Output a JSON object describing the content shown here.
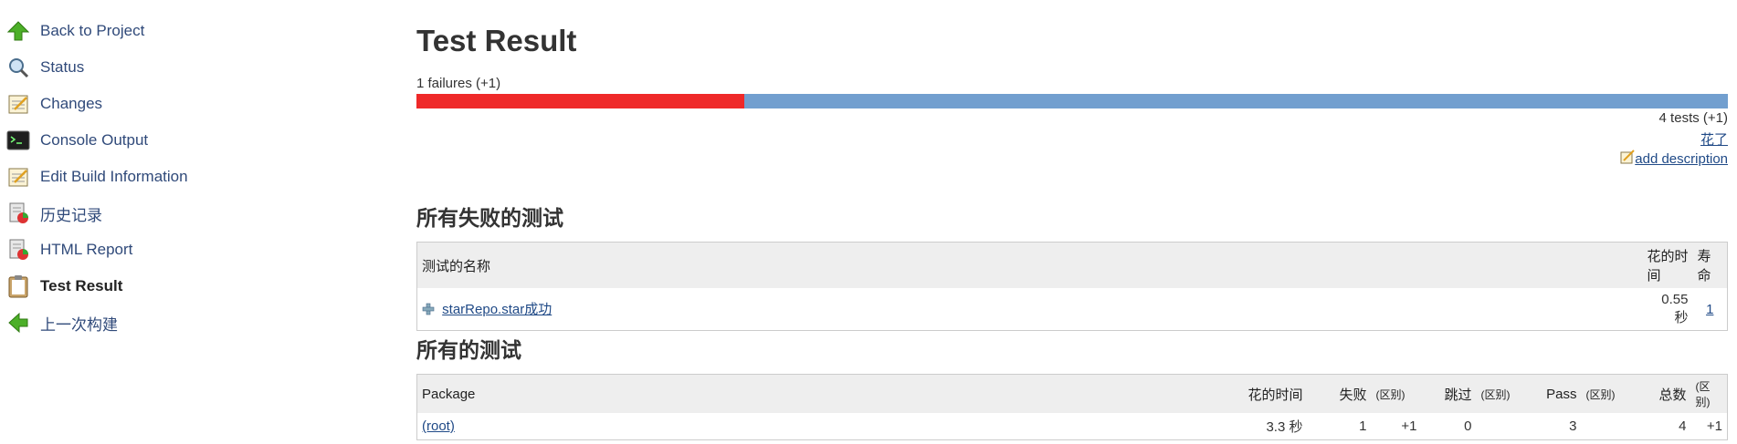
{
  "sidebar": {
    "items": [
      {
        "label": "Back to Project",
        "icon": "up-arrow-icon"
      },
      {
        "label": "Status",
        "icon": "magnifier-icon"
      },
      {
        "label": "Changes",
        "icon": "notepad-icon"
      },
      {
        "label": "Console Output",
        "icon": "terminal-icon"
      },
      {
        "label": "Edit Build Information",
        "icon": "notepad-icon"
      },
      {
        "label": "历史记录",
        "icon": "report-icon"
      },
      {
        "label": "HTML Report",
        "icon": "report-icon"
      },
      {
        "label": "Test Result",
        "icon": "clipboard-icon"
      },
      {
        "label": "上一次构建",
        "icon": "left-arrow-icon"
      }
    ]
  },
  "main": {
    "title": "Test Result",
    "fail_summary": "1 failures (+1)",
    "failure_fraction": 0.25,
    "tests_summary": "4 tests (+1)",
    "took_link": "花了",
    "add_description": "add description"
  },
  "failed_section": {
    "heading": "所有失败的测试",
    "columns": {
      "name": "测试的名称",
      "duration": "花的时间",
      "age": "寿命"
    },
    "rows": [
      {
        "name": "starRepo.star成功",
        "duration": "0.55 秒",
        "age": "1"
      }
    ]
  },
  "all_section": {
    "heading": "所有的测试",
    "columns": {
      "package": "Package",
      "duration": "花的时间",
      "fail": "失败",
      "diff": "(区别)",
      "skip": "跳过",
      "pass": "Pass",
      "total": "总数"
    },
    "rows": [
      {
        "package": "(root)",
        "duration": "3.3 秒",
        "fail": "1",
        "fail_diff": "+1",
        "skip": "0",
        "pass": "3",
        "total": "4",
        "total_diff": "+1"
      }
    ]
  },
  "colors": {
    "fail": "#ef2929",
    "pass": "#729fcf"
  }
}
